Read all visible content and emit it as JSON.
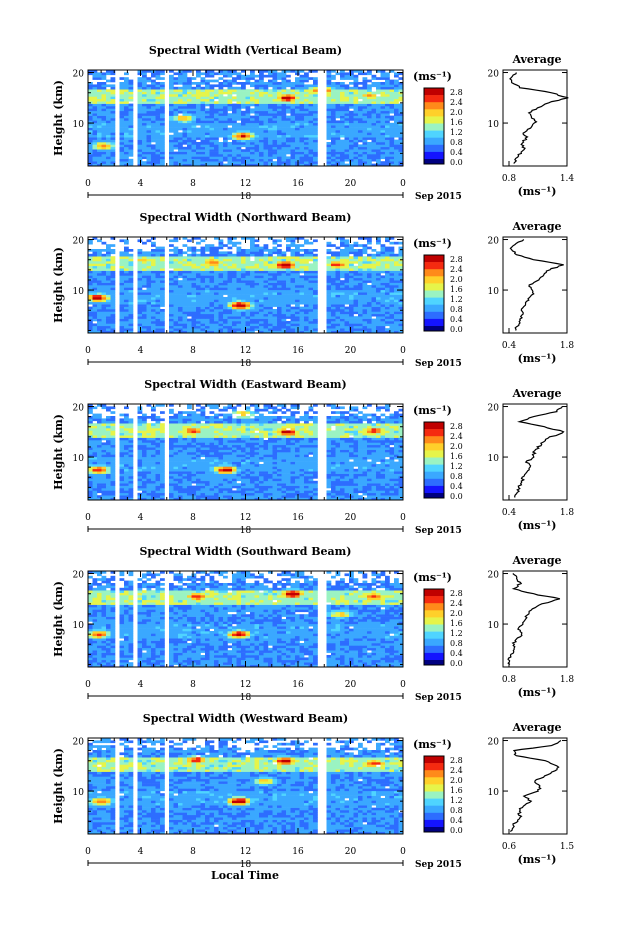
{
  "colors": {
    "scale": [
      "#ffffff",
      "#1414ff",
      "#2d6dff",
      "#3aa8ff",
      "#4fd4ff",
      "#9af3c2",
      "#e6f44a",
      "#ffd02a",
      "#ff8a1a",
      "#f52a10",
      "#c00000"
    ],
    "colorbar_bottom": "#000080",
    "profile_line": "#000000"
  },
  "xaxis": {
    "ticks": [
      "0",
      "4",
      "8",
      "12",
      "16",
      "20",
      "0"
    ],
    "date_day": "18",
    "date_suffix": "Sep 2015",
    "title": "Local Time"
  },
  "yaxis": {
    "label": "Height (km)",
    "ticks": [
      "20",
      "10"
    ]
  },
  "colorbar": {
    "unit": "(ms⁻¹)",
    "ticks": [
      "2.8",
      "2.4",
      "2.0",
      "1.6",
      "1.2",
      "0.8",
      "0.4",
      "0.0"
    ]
  },
  "profile": {
    "title": "Average",
    "unit": "(ms⁻¹)",
    "yticks": [
      "20",
      "10"
    ]
  },
  "chart_data": [
    {
      "type": "heatmap",
      "title": "Spectral Width (Vertical Beam)",
      "xlabel": "Local Time",
      "ylabel": "Height (km)",
      "xlim": [
        0,
        24
      ],
      "ylim": [
        1.5,
        20.5
      ],
      "color_range": [
        0.0,
        2.8
      ],
      "data_gaps_hours": [
        [
          2.0,
          2.5
        ],
        [
          3.3,
          3.7
        ],
        [
          5.7,
          6.0
        ],
        [
          17.6,
          18.0
        ],
        [
          21.1,
          21.4
        ]
      ],
      "hotspots": [
        {
          "t": 1.2,
          "h": 5.5,
          "v": 2.0
        },
        {
          "t": 7.3,
          "h": 11.0,
          "v": 1.9
        },
        {
          "t": 11.8,
          "h": 7.5,
          "v": 2.4
        },
        {
          "t": 15.2,
          "h": 15.0,
          "v": 2.8
        },
        {
          "t": 17.8,
          "h": 16.5,
          "v": 2.6
        },
        {
          "t": 21.5,
          "h": 15.5,
          "v": 2.0
        }
      ],
      "average_profile": {
        "xticks": [
          "0.8",
          "1.4"
        ],
        "xlim": [
          0.45,
          1.45
        ],
        "height_km": [
          2,
          3,
          4,
          5,
          6,
          7,
          8,
          9,
          10,
          11,
          12,
          13,
          14,
          15,
          16,
          17,
          18,
          19,
          20
        ],
        "value": [
          0.62,
          0.66,
          0.72,
          0.78,
          0.74,
          0.82,
          0.78,
          0.86,
          0.96,
          0.92,
          0.84,
          1.0,
          1.16,
          1.45,
          1.22,
          0.72,
          0.58,
          0.58,
          0.66
        ]
      }
    },
    {
      "type": "heatmap",
      "title": "Spectral Width (Northward Beam)",
      "xlabel": "Local Time",
      "ylabel": "Height (km)",
      "xlim": [
        0,
        24
      ],
      "ylim": [
        1.5,
        20.5
      ],
      "color_range": [
        0.0,
        2.8
      ],
      "data_gaps_hours": [
        [
          2.0,
          2.5
        ],
        [
          3.3,
          3.7
        ],
        [
          5.7,
          6.0
        ],
        [
          17.6,
          18.0
        ],
        [
          21.1,
          21.4
        ]
      ],
      "hotspots": [
        {
          "t": 0.7,
          "h": 8.5,
          "v": 2.6
        },
        {
          "t": 9.5,
          "h": 15.5,
          "v": 2.2
        },
        {
          "t": 11.6,
          "h": 7.0,
          "v": 2.8
        },
        {
          "t": 15.0,
          "h": 15.0,
          "v": 2.9
        },
        {
          "t": 19.0,
          "h": 15.0,
          "v": 2.3
        },
        {
          "t": 4.2,
          "h": 16.0,
          "v": 1.8
        }
      ],
      "average_profile": {
        "xticks": [
          "0.4",
          "1.8"
        ],
        "xlim": [
          0.3,
          1.9
        ],
        "height_km": [
          2,
          3,
          4,
          5,
          6,
          7,
          8,
          9,
          10,
          11,
          12,
          13,
          14,
          15,
          16,
          17,
          18,
          19,
          20
        ],
        "value": [
          0.62,
          0.66,
          0.72,
          0.8,
          0.76,
          0.86,
          0.92,
          1.05,
          1.0,
          0.95,
          1.2,
          1.28,
          1.45,
          1.82,
          1.1,
          0.65,
          0.5,
          0.6,
          0.82
        ]
      }
    },
    {
      "type": "heatmap",
      "title": "Spectral Width (Eastward Beam)",
      "xlabel": "Local Time",
      "ylabel": "Height (km)",
      "xlim": [
        0,
        24
      ],
      "ylim": [
        1.5,
        20.5
      ],
      "color_range": [
        0.0,
        2.8
      ],
      "data_gaps_hours": [
        [
          2.0,
          2.5
        ],
        [
          3.3,
          3.7
        ],
        [
          5.7,
          6.0
        ],
        [
          17.6,
          18.0
        ],
        [
          21.1,
          21.4
        ]
      ],
      "hotspots": [
        {
          "t": 0.8,
          "h": 7.5,
          "v": 2.4
        },
        {
          "t": 10.5,
          "h": 7.5,
          "v": 2.6
        },
        {
          "t": 15.2,
          "h": 15.0,
          "v": 2.7
        },
        {
          "t": 8.0,
          "h": 15.2,
          "v": 2.3
        },
        {
          "t": 21.8,
          "h": 15.2,
          "v": 2.4
        },
        {
          "t": 11.8,
          "h": 18.5,
          "v": 1.9
        }
      ],
      "average_profile": {
        "xticks": [
          "0.4",
          "1.8"
        ],
        "xlim": [
          0.3,
          1.9
        ],
        "height_km": [
          2,
          3,
          4,
          5,
          6,
          7,
          8,
          9,
          10,
          11,
          12,
          13,
          14,
          15,
          16,
          17,
          18,
          19,
          20
        ],
        "value": [
          0.6,
          0.65,
          0.7,
          0.78,
          0.8,
          0.86,
          0.98,
          0.9,
          1.05,
          1.08,
          1.18,
          1.3,
          1.5,
          1.85,
          1.3,
          0.72,
          1.05,
          1.65,
          1.78
        ]
      }
    },
    {
      "type": "heatmap",
      "title": "Spectral Width (Southward Beam)",
      "xlabel": "Local Time",
      "ylabel": "Height (km)",
      "xlim": [
        0,
        24
      ],
      "ylim": [
        1.5,
        20.5
      ],
      "color_range": [
        0.0,
        2.8
      ],
      "data_gaps_hours": [
        [
          2.0,
          2.5
        ],
        [
          3.3,
          3.7
        ],
        [
          5.7,
          6.0
        ],
        [
          17.6,
          18.0
        ],
        [
          21.1,
          21.4
        ]
      ],
      "hotspots": [
        {
          "t": 0.8,
          "h": 8.0,
          "v": 2.3
        },
        {
          "t": 11.5,
          "h": 8.0,
          "v": 2.6
        },
        {
          "t": 15.6,
          "h": 16.0,
          "v": 2.9
        },
        {
          "t": 8.3,
          "h": 15.5,
          "v": 2.4
        },
        {
          "t": 21.8,
          "h": 15.5,
          "v": 2.3
        },
        {
          "t": 19.2,
          "h": 12.0,
          "v": 1.8
        }
      ],
      "average_profile": {
        "xticks": [
          "0.8",
          "1.8"
        ],
        "xlim": [
          0.6,
          1.9
        ],
        "height_km": [
          2,
          3,
          4,
          5,
          6,
          7,
          8,
          9,
          10,
          11,
          12,
          13,
          14,
          15,
          16,
          17,
          18,
          19,
          20
        ],
        "value": [
          0.74,
          0.72,
          0.78,
          0.82,
          0.8,
          0.88,
          1.0,
          0.92,
          1.0,
          1.05,
          1.1,
          1.2,
          1.4,
          1.75,
          1.2,
          0.82,
          0.95,
          0.88,
          0.8
        ]
      }
    },
    {
      "type": "heatmap",
      "title": "Spectral Width (Westward Beam)",
      "xlabel": "Local Time",
      "ylabel": "Height (km)",
      "xlim": [
        0,
        24
      ],
      "ylim": [
        1.5,
        20.5
      ],
      "color_range": [
        0.0,
        2.8
      ],
      "data_gaps_hours": [
        [
          2.0,
          2.5
        ],
        [
          3.3,
          3.7
        ],
        [
          5.7,
          6.0
        ],
        [
          17.6,
          18.0
        ],
        [
          21.1,
          21.4
        ]
      ],
      "hotspots": [
        {
          "t": 1.0,
          "h": 8.0,
          "v": 2.2
        },
        {
          "t": 11.5,
          "h": 8.0,
          "v": 2.8
        },
        {
          "t": 15.0,
          "h": 16.0,
          "v": 2.7
        },
        {
          "t": 8.3,
          "h": 16.2,
          "v": 2.4
        },
        {
          "t": 21.8,
          "h": 15.5,
          "v": 2.4
        },
        {
          "t": 13.5,
          "h": 12.0,
          "v": 1.8
        }
      ],
      "average_profile": {
        "xticks": [
          "0.6",
          "1.5"
        ],
        "xlim": [
          0.5,
          1.55
        ],
        "height_km": [
          2,
          3,
          4,
          5,
          6,
          7,
          8,
          9,
          10,
          11,
          12,
          13,
          14,
          15,
          16,
          17,
          18,
          19,
          20
        ],
        "value": [
          0.62,
          0.66,
          0.72,
          0.78,
          0.76,
          0.82,
          0.95,
          0.85,
          1.08,
          1.12,
          1.02,
          1.2,
          1.35,
          1.4,
          1.18,
          0.72,
          0.66,
          1.3,
          1.45
        ]
      }
    }
  ]
}
